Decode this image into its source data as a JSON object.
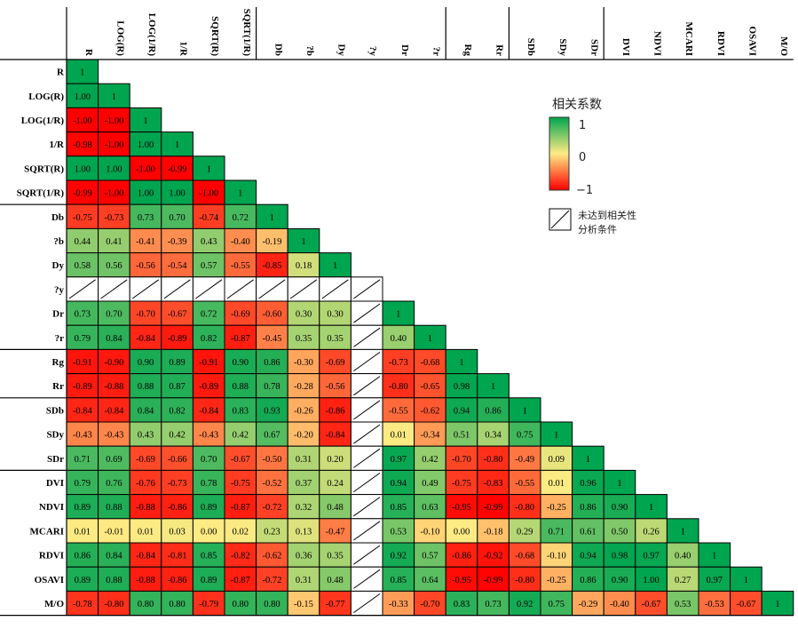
{
  "chart_data": {
    "type": "heatmap",
    "variables": [
      "R",
      "LOG(R)",
      "LOG(1/R)",
      "1/R",
      "SQRT(R)",
      "SQRT(1/R)",
      "Db",
      "?b",
      "Dy",
      "?y",
      "Dr",
      "?r",
      "Rg",
      "Rr",
      "SDb",
      "SDy",
      "SDr",
      "DVI",
      "NDVI",
      "MCARI",
      "RDVI",
      "OSAVI",
      "M/O"
    ],
    "column_labels": [
      "R",
      "LOG(R)",
      "LOG(1/R)",
      "1/R",
      "SQRT(R)",
      "SQRT(1/R)",
      "Db",
      "?b",
      "Dy",
      "?y",
      "Dr",
      "?r",
      "Rg",
      "Rr",
      "SDb",
      "SDy",
      "SDr",
      "DVI",
      "NDVI",
      "MCARI",
      "RDVI",
      "OSAVI",
      "M/O"
    ],
    "row_labels": [
      "R",
      "LOG(R)",
      "LOG(1/R)",
      "1/R",
      "SQRT(R)",
      "SQRT(1/R)",
      "Db",
      "?b",
      "Dy",
      "?y",
      "Dr",
      "?r",
      "Rg",
      "Rr",
      "SDb",
      "SDy",
      "SDr",
      "DVI",
      "NDVI",
      "MCARI",
      "RDVI",
      "OSAVI",
      "M/O"
    ],
    "values": [
      [
        "1"
      ],
      [
        "1.00",
        "1"
      ],
      [
        "-1.00",
        "-1.00",
        "1"
      ],
      [
        "-0.98",
        "-1.00",
        "1.00",
        "1"
      ],
      [
        "1.00",
        "1.00",
        "-1.00",
        "-0.99",
        "1"
      ],
      [
        "-0.99",
        "-1.00",
        "1.00",
        "1.00",
        "-1.00",
        "1"
      ],
      [
        "-0.75",
        "-0.73",
        "0.73",
        "0.70",
        "-0.74",
        "0.72",
        "1"
      ],
      [
        "0.44",
        "0.41",
        "-0.41",
        "-0.39",
        "0.43",
        "-0.40",
        "-0.19",
        "1"
      ],
      [
        "0.58",
        "0.56",
        "-0.56",
        "-0.54",
        "0.57",
        "-0.55",
        "-0.85",
        "0.18",
        "1"
      ],
      [
        null,
        null,
        null,
        null,
        null,
        null,
        null,
        null,
        null,
        null
      ],
      [
        "0.73",
        "0.70",
        "-0.70",
        "-0.67",
        "0.72",
        "-0.69",
        "-0.60",
        "0.30",
        "0.30",
        null,
        "1"
      ],
      [
        "0.79",
        "0.84",
        "-0.84",
        "-0.89",
        "0.82",
        "-0.87",
        "-0.45",
        "0.35",
        "0.35",
        null,
        "0.40",
        "1"
      ],
      [
        "-0.91",
        "-0.90",
        "0.90",
        "0.89",
        "-0.91",
        "0.90",
        "0.86",
        "-0.30",
        "-0.69",
        null,
        "-0.73",
        "-0.68",
        "1"
      ],
      [
        "-0.89",
        "-0.88",
        "0.88",
        "0.87",
        "-0.89",
        "0.88",
        "0.78",
        "-0.28",
        "-0.56",
        null,
        "-0.80",
        "-0.65",
        "0.98",
        "1"
      ],
      [
        "-0.84",
        "-0.84",
        "0.84",
        "0.82",
        "-0.84",
        "0.83",
        "0.93",
        "-0.26",
        "-0.86",
        null,
        "-0.55",
        "-0.62",
        "0.94",
        "0.86",
        "1"
      ],
      [
        "-0.43",
        "-0.43",
        "0.43",
        "0.42",
        "-0.43",
        "0.42",
        "0.67",
        "-0.20",
        "-0.84",
        null,
        "0.01",
        "-0.34",
        "0.51",
        "0.34",
        "0.75",
        "1"
      ],
      [
        "0.71",
        "0.69",
        "-0.69",
        "-0.66",
        "0.70",
        "-0.67",
        "-0.50",
        "0.31",
        "0.20",
        null,
        "0.97",
        "0.42",
        "-0.70",
        "-0.80",
        "-0.49",
        "0.09",
        "1"
      ],
      [
        "0.79",
        "0.76",
        "-0.76",
        "-0.73",
        "0.78",
        "-0.75",
        "-0.52",
        "0.37",
        "0.24",
        null,
        "0.94",
        "0.49",
        "-0.75",
        "-0.83",
        "-0.55",
        "0.01",
        "0.96",
        "1"
      ],
      [
        "0.89",
        "0.88",
        "-0.88",
        "-0.86",
        "0.89",
        "-0.87",
        "-0.72",
        "0.32",
        "0.48",
        null,
        "0.85",
        "0.63",
        "-0.95",
        "-0.99",
        "-0.80",
        "-0.25",
        "0.86",
        "0.90",
        "1"
      ],
      [
        "0.01",
        "-0.01",
        "0.01",
        "0.03",
        "0.00",
        "0.02",
        "0.23",
        "0.13",
        "-0.47",
        null,
        "0.53",
        "-0.10",
        "0.00",
        "-0.18",
        "0.29",
        "0.71",
        "0.61",
        "0.50",
        "0.26",
        "1"
      ],
      [
        "0.86",
        "0.84",
        "-0.84",
        "-0.81",
        "0.85",
        "-0.82",
        "-0.62",
        "0.36",
        "0.35",
        null,
        "0.92",
        "0.57",
        "-0.86",
        "-0.92",
        "-0.68",
        "-0.10",
        "0.94",
        "0.98",
        "0.97",
        "0.40",
        "1"
      ],
      [
        "0.89",
        "0.88",
        "-0.88",
        "-0.86",
        "0.89",
        "-0.87",
        "-0.72",
        "0.31",
        "0.48",
        null,
        "0.85",
        "0.64",
        "-0.95",
        "-0.99",
        "-0.80",
        "-0.25",
        "0.86",
        "0.90",
        "1.00",
        "0.27",
        "0.97",
        "1"
      ],
      [
        "-0.78",
        "-0.80",
        "0.80",
        "0.80",
        "-0.79",
        "0.80",
        "0.80",
        "-0.15",
        "-0.77",
        null,
        "-0.33",
        "-0.70",
        "0.83",
        "0.73",
        "0.92",
        "0.75",
        "-0.29",
        "-0.40",
        "-0.67",
        "0.53",
        "-0.53",
        "-0.67",
        "1"
      ]
    ],
    "group_boundaries_after": [
      "SQRT(1/R)",
      "?r",
      "Rr",
      "SDr"
    ],
    "colorscale": {
      "min": -1,
      "mid": 0,
      "max": 1,
      "min_color": "#ff0000",
      "mid_color": "#ffeb84",
      "max_color": "#00a550"
    },
    "legend": {
      "title": "相关系数",
      "tick_max": "1",
      "tick_mid": "0",
      "tick_min": "−1",
      "note_line1": "未达到相关性",
      "note_line2": "分析条件",
      "placement": "top-right"
    }
  }
}
